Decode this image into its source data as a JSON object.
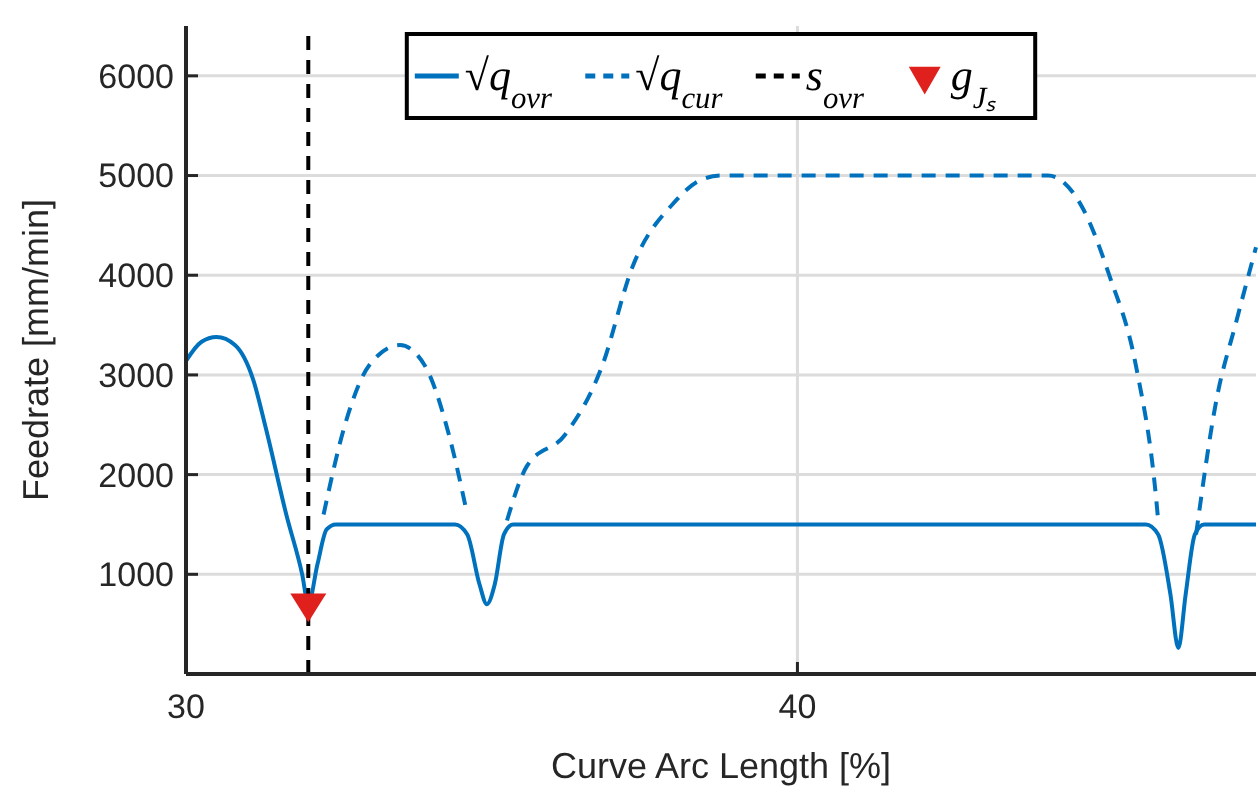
{
  "chart_data": {
    "type": "line",
    "xlabel": "Curve Arc Length [%]",
    "ylabel": "Feedrate [mm/min]",
    "xlim": [
      30,
      47.5
    ],
    "xticks": [
      30,
      40
    ],
    "ylim": [
      0,
      6500
    ],
    "yticks": [
      1000,
      2000,
      3000,
      4000,
      5000,
      6000
    ],
    "grid": true,
    "legend": "top",
    "series": [
      {
        "name": "√q$_{ovr}$",
        "color": "#0072bd",
        "type": "line",
        "line_style": "solid",
        "x": [
          30,
          30.25,
          30.5,
          30.8,
          31.1,
          31.3,
          31.64,
          31.9,
          32,
          32.15,
          32.3,
          32.45,
          34.4,
          34.6,
          34.8,
          34.92,
          35.05,
          35.2,
          35.35,
          45.7,
          45.9,
          46.1,
          46.23,
          46.35,
          46.5,
          46.65,
          47.5
        ],
        "values": [
          3140,
          3330,
          3380,
          3300,
          2950,
          2480,
          1600,
          1000,
          700,
          1100,
          1450,
          1500,
          1500,
          1400,
          900,
          700,
          900,
          1400,
          1500,
          1500,
          1400,
          800,
          260,
          800,
          1400,
          1500,
          1500
        ]
      },
      {
        "name": "√q$_{cur}$",
        "color": "#0072bd",
        "type": "line",
        "line_style": "dashed",
        "x": [
          32.25,
          32.6,
          33,
          33.5,
          33.9,
          34.3,
          34.6,
          34.9,
          35.25,
          35.57,
          36.2,
          36.8,
          37.3,
          38,
          38.4,
          38.75,
          44.1,
          44.66,
          45.1,
          45.54,
          45.87,
          45.9,
          46.2,
          46.52,
          46.85,
          47.18,
          47.5
        ],
        "values": [
          1600,
          2500,
          3100,
          3300,
          3100,
          2400,
          1600,
          null,
          1540,
          2080,
          2400,
          3080,
          4080,
          4740,
          4950,
          5000,
          5000,
          4680,
          4000,
          3080,
          1740,
          1540,
          null,
          1400,
          2740,
          3540,
          4280
        ]
      },
      {
        "name": "s$_{ovr}$",
        "color": "#000000",
        "type": "line",
        "line_style": "dashed",
        "x": [
          32,
          32
        ],
        "values": [
          0,
          6500
        ]
      },
      {
        "name": "g$_{Jₛ}$",
        "color": "#e0201c",
        "type": "scatter",
        "marker": "triangle",
        "x": [
          32
        ],
        "values": [
          700
        ]
      }
    ]
  }
}
